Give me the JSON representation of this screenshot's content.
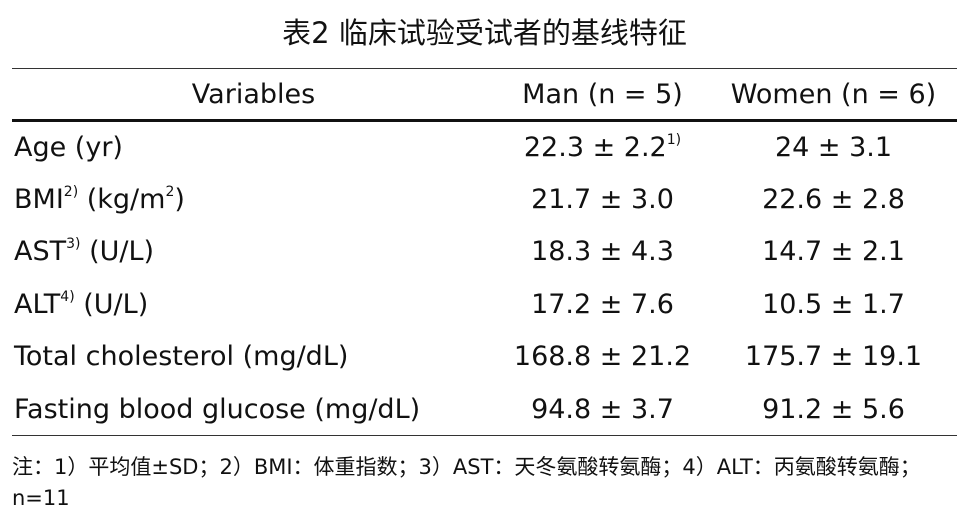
{
  "title": "表2 临床试验受试者的基线特征",
  "table": {
    "header": [
      "Variables",
      "Man (n = 5)",
      "Women (n = 6)"
    ],
    "rows": [
      [
        [
          "Age (yr)"
        ],
        [
          "22.3 ± 2.2",
          {
            "sup": "1)"
          }
        ],
        [
          "24 ± 3.1"
        ]
      ],
      [
        [
          "BMI",
          {
            "sup": "2)"
          },
          " (kg/m",
          {
            "sup": "2"
          },
          ")"
        ],
        [
          "21.7 ± 3.0"
        ],
        [
          "22.6 ± 2.8"
        ]
      ],
      [
        [
          "AST",
          {
            "sup": "3)"
          },
          " (U/L)"
        ],
        [
          "18.3 ± 4.3"
        ],
        [
          "14.7 ± 2.1"
        ]
      ],
      [
        [
          "ALT",
          {
            "sup": "4)"
          },
          " (U/L)"
        ],
        [
          "17.2 ± 7.6"
        ],
        [
          "10.5 ± 1.7"
        ]
      ],
      [
        [
          "Total cholesterol (mg/dL)"
        ],
        [
          "168.8 ± 21.2"
        ],
        [
          "175.7 ± 19.1"
        ]
      ],
      [
        [
          "Fasting blood glucose (mg/dL)"
        ],
        [
          "94.8 ± 3.7"
        ],
        [
          "91.2 ± 5.6"
        ]
      ]
    ]
  },
  "note": "注：1）平均值±SD；2）BMI：体重指数；3）AST：天冬氨酸转氨酶；4）ALT：丙氨酸转氨酶；n=11"
}
